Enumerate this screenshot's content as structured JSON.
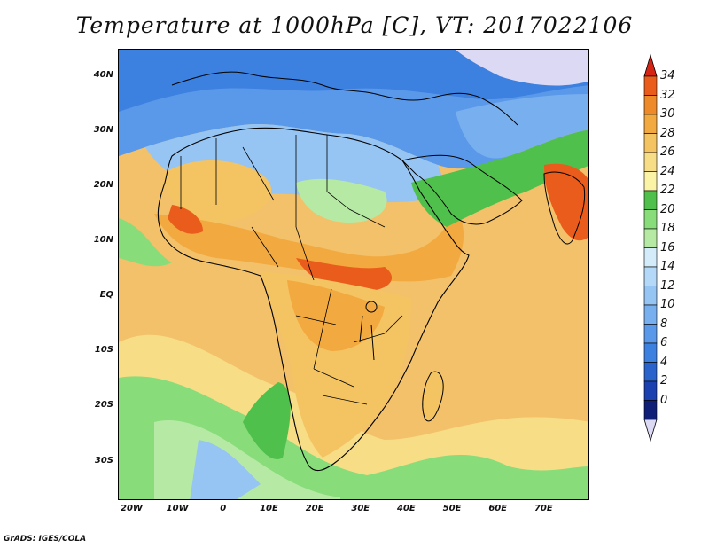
{
  "title": "Temperature at 1000hPa [C], VT: 2017022106",
  "footer": "GrADS: IGES/COLA",
  "map": {
    "lon_range": [
      -23,
      80
    ],
    "lat_range": [
      -37,
      45
    ],
    "lat_ticks": [
      {
        "value": 40,
        "label": "40N"
      },
      {
        "value": 30,
        "label": "30N"
      },
      {
        "value": 20,
        "label": "20N"
      },
      {
        "value": 10,
        "label": "10N"
      },
      {
        "value": 0,
        "label": "EQ"
      },
      {
        "value": -10,
        "label": "10S"
      },
      {
        "value": -20,
        "label": "20S"
      },
      {
        "value": -30,
        "label": "30S"
      }
    ],
    "lon_ticks": [
      {
        "value": -20,
        "label": "20W"
      },
      {
        "value": -10,
        "label": "10W"
      },
      {
        "value": 0,
        "label": "0"
      },
      {
        "value": 10,
        "label": "10E"
      },
      {
        "value": 20,
        "label": "20E"
      },
      {
        "value": 30,
        "label": "30E"
      },
      {
        "value": 40,
        "label": "40E"
      },
      {
        "value": 50,
        "label": "50E"
      },
      {
        "value": 60,
        "label": "60E"
      },
      {
        "value": 70,
        "label": "70E"
      }
    ]
  },
  "colorbar": {
    "levels": [
      {
        "label": "0",
        "color": "#0f1f78"
      },
      {
        "label": "2",
        "color": "#1b40b0"
      },
      {
        "label": "4",
        "color": "#2a63cc"
      },
      {
        "label": "6",
        "color": "#3c80e0"
      },
      {
        "label": "8",
        "color": "#5a98ea"
      },
      {
        "label": "10",
        "color": "#78afef"
      },
      {
        "label": "12",
        "color": "#96c4f3"
      },
      {
        "label": "14",
        "color": "#b4d8f7"
      },
      {
        "label": "16",
        "color": "#d4ecfa"
      },
      {
        "label": "18",
        "color": "#b6eaa4"
      },
      {
        "label": "20",
        "color": "#88dc7a"
      },
      {
        "label": "22",
        "color": "#4fc04b"
      },
      {
        "label": "24",
        "color": "#fbf4a6"
      },
      {
        "label": "26",
        "color": "#f7dd86"
      },
      {
        "label": "28",
        "color": "#f4c463"
      },
      {
        "label": "30",
        "color": "#f2a93f"
      },
      {
        "label": "32",
        "color": "#ef8a2b"
      },
      {
        "label": "34",
        "color": "#ea5c1b"
      }
    ],
    "under_color": "#dcd9f5",
    "over_color": "#d62414"
  }
}
